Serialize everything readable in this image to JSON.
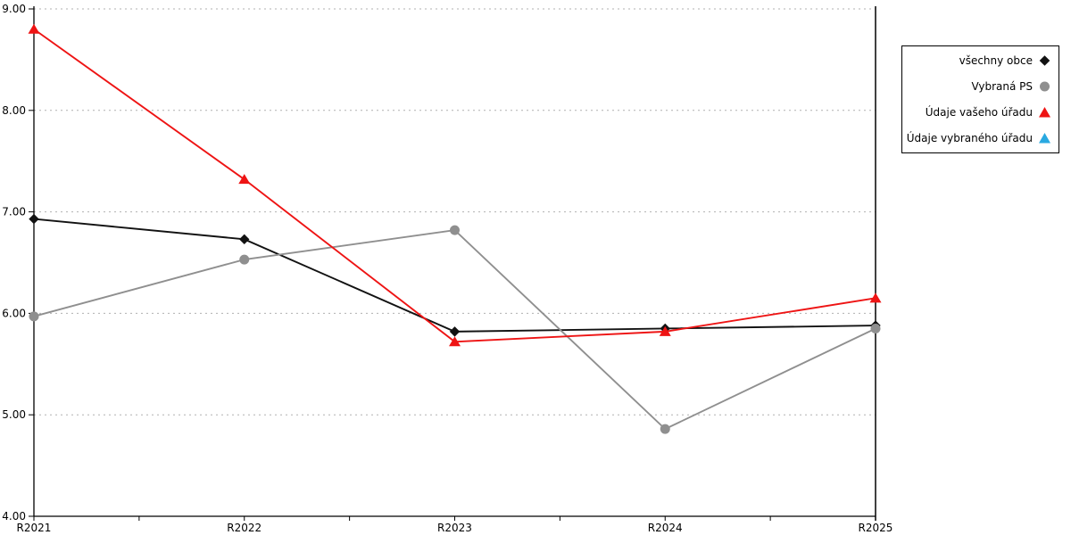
{
  "chart_data": {
    "type": "line",
    "title": "",
    "xlabel": "",
    "ylabel": "",
    "categories": [
      "R2021",
      "R2022",
      "R2023",
      "R2024",
      "R2025"
    ],
    "series": [
      {
        "name": "všechny obce",
        "marker": "diamond",
        "color": "#121212",
        "values": [
          6.93,
          6.73,
          5.82,
          5.85,
          5.88
        ]
      },
      {
        "name": "Vybraná PS",
        "marker": "circle",
        "color": "#8f8f8f",
        "values": [
          5.97,
          6.53,
          6.82,
          4.86,
          5.85
        ]
      },
      {
        "name": "Údaje vašeho úřadu",
        "marker": "triangle",
        "color": "#ee1414",
        "values": [
          8.8,
          7.32,
          5.72,
          5.82,
          6.15
        ]
      },
      {
        "name": "Údaje vybraného úřadu",
        "marker": "triangle",
        "color": "#29a9e1",
        "values": []
      }
    ],
    "ylim": [
      4,
      9
    ],
    "ytick_step": 1,
    "ytick_labels": [
      "4.00",
      "5.00",
      "6.00",
      "7.00",
      "8.00",
      "9.00"
    ],
    "grid": "horizontal-dotted",
    "grid_color": "#b0b0b0",
    "axis_color": "#000000",
    "legend_position": "top-right",
    "legend_border_color": "#000000"
  }
}
